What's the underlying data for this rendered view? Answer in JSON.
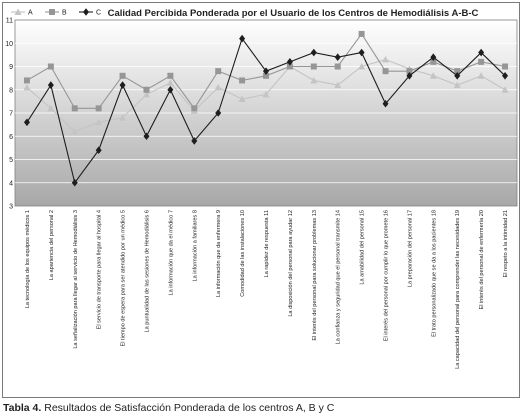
{
  "chart_data": {
    "type": "line",
    "title": "Calidad Percibida Ponderada por el Usuario de los Centros de Hemodiálisis A-B-C",
    "xlabel": "",
    "ylabel": "",
    "ylim": [
      3,
      11
    ],
    "yticks": [
      3,
      4,
      5,
      6,
      7,
      8,
      9,
      10,
      11
    ],
    "grid": true,
    "legend_position": "top-left",
    "categories": [
      "La tecnología de los equipos médicos 1",
      "La apariencia del personal 2",
      "La señalización para llegar al servicio de Hemodiálisis 3",
      "El servicio de transporte para llegar al hospital 4",
      "El tiempo de espera para ser atendido por un médico 5",
      "La puntualidad de las sesiones de Hemodiálisis 6",
      "La información que da el médico 7",
      "La información a familiares 8",
      "La información que da enfermera 9",
      "Comodidad de las instalaciones 10",
      "La rapidez de respuesta 11",
      "La disposición del personal para ayudar 12",
      "El interés del personal para solucionar problemas 13",
      "La confianza y seguridad que el personal transmite 14",
      "La amabilidad del personal 15",
      "El interés del personal por cumplir lo que promete 16",
      "La preparación del personal 17",
      "El trato personalizado que se da a los pacientes 18",
      "La capacidad del personal para comprender las necesidades 19",
      "El interés del personal de enfermería 20",
      "El respeto a la intimidad 21"
    ],
    "series": [
      {
        "name": "A",
        "marker": "triangle",
        "color": "#c4c4c4",
        "values": [
          8.1,
          7.2,
          6.2,
          6.6,
          6.8,
          7.8,
          8.3,
          7.1,
          8.1,
          7.6,
          7.8,
          9.0,
          8.4,
          8.2,
          9.0,
          9.3,
          8.9,
          8.6,
          8.2,
          8.6,
          8.0
        ]
      },
      {
        "name": "B",
        "marker": "square",
        "color": "#969696",
        "values": [
          8.4,
          9.0,
          7.2,
          7.2,
          8.6,
          8.0,
          8.6,
          7.2,
          8.8,
          8.4,
          8.6,
          9.0,
          9.0,
          9.0,
          10.4,
          8.8,
          8.8,
          9.2,
          8.8,
          9.2,
          9.0
        ]
      },
      {
        "name": "C",
        "marker": "diamond",
        "color": "#1e1e1e",
        "values": [
          6.6,
          8.2,
          4.0,
          5.4,
          8.2,
          6.0,
          8.0,
          5.8,
          7.0,
          10.2,
          8.8,
          9.2,
          9.6,
          9.4,
          9.6,
          7.4,
          8.6,
          9.4,
          8.6,
          9.6,
          8.6
        ]
      }
    ]
  },
  "caption": {
    "label": "Tabla 4.",
    "text": "Resultados de Satisfacción Ponderada de los centros A, B y C"
  }
}
